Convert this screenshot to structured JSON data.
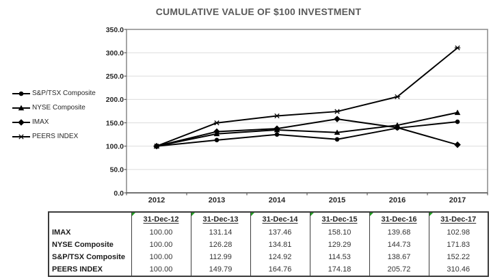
{
  "chart_data": {
    "type": "line",
    "title": "CUMULATIVE VALUE OF $100 INVESTMENT",
    "x": [
      "2012",
      "2013",
      "2014",
      "2015",
      "2016",
      "2017"
    ],
    "series": [
      {
        "name": "S&P/TSX Composite",
        "marker": "circle",
        "values": [
          100.0,
          112.99,
          124.92,
          114.53,
          138.67,
          152.22
        ]
      },
      {
        "name": "NYSE Composite",
        "marker": "triangle",
        "values": [
          100.0,
          126.28,
          134.81,
          129.29,
          144.73,
          171.83
        ]
      },
      {
        "name": "IMAX",
        "marker": "diamond",
        "values": [
          100.0,
          131.14,
          137.46,
          158.1,
          139.68,
          102.98
        ]
      },
      {
        "name": "PEERS INDEX",
        "marker": "asterisk",
        "values": [
          100.0,
          149.79,
          164.76,
          174.18,
          205.72,
          310.46
        ]
      }
    ],
    "ylim": [
      0,
      350
    ],
    "ytick_labels": [
      "0.0",
      "50.0",
      "100.0",
      "150.0",
      "200.0",
      "250.0",
      "300.0",
      "350.0"
    ],
    "grid": true,
    "legend_position": "left",
    "colors": {
      "line": "#000000",
      "gridline": "#dcdcdc",
      "plot_border": "#8f8f8f",
      "axis": "#595959",
      "tick_label": "#262626",
      "title": "#595959"
    }
  },
  "table": {
    "corner_label": "",
    "col_headers": [
      "31-Dec-12",
      "31-Dec-13",
      "31-Dec-14",
      "31-Dec-15",
      "31-Dec-16",
      "31-Dec-17"
    ],
    "rows": [
      {
        "label": "IMAX",
        "values": [
          "100.00",
          "131.14",
          "137.46",
          "158.10",
          "139.68",
          "102.98"
        ]
      },
      {
        "label": "NYSE Composite",
        "values": [
          "100.00",
          "126.28",
          "134.81",
          "129.29",
          "144.73",
          "171.83"
        ]
      },
      {
        "label": "S&P/TSX Composite",
        "values": [
          "100.00",
          "112.99",
          "124.92",
          "114.53",
          "138.67",
          "152.22"
        ]
      },
      {
        "label": "PEERS INDEX",
        "values": [
          "100.00",
          "149.79",
          "164.76",
          "174.18",
          "205.72",
          "310.46"
        ]
      }
    ],
    "flag_color": "#22a022"
  }
}
